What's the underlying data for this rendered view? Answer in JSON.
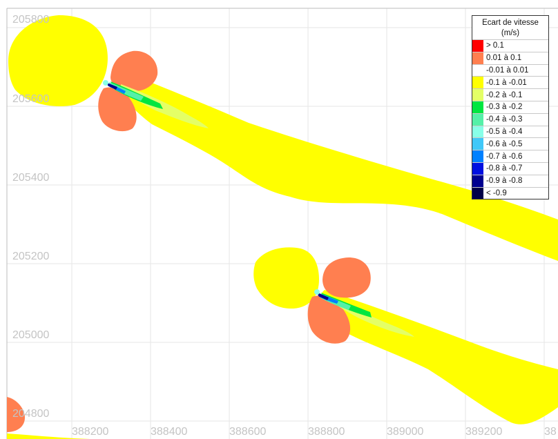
{
  "chart_data": {
    "type": "heatmap",
    "x_ticks": [
      "388200",
      "388400",
      "388600",
      "388800",
      "389000",
      "389200",
      "38"
    ],
    "y_ticks": [
      "205800",
      "205600",
      "205400",
      "205200",
      "205000",
      "204800"
    ],
    "grid": true,
    "legend": {
      "placement": "top-right",
      "title": "Ecart de vitesse",
      "unit": "(m/s)",
      "entries": [
        {
          "label": "> 0.1",
          "color": "#ff0000"
        },
        {
          "label": "0.01 à 0.1",
          "color": "#ff7f50"
        },
        {
          "label": "-0.01 à 0.01",
          "color": "#ffffff"
        },
        {
          "label": "-0.1 à -0.01",
          "color": "#ffff00"
        },
        {
          "label": "-0.2 à -0.1",
          "color": "#e4ff66"
        },
        {
          "label": "-0.3 à -0.2",
          "color": "#00e640"
        },
        {
          "label": "-0.4 à -0.3",
          "color": "#55f0a8"
        },
        {
          "label": "-0.5 à -0.4",
          "color": "#88ffe8"
        },
        {
          "label": "-0.6 à -0.5",
          "color": "#40c8f8"
        },
        {
          "label": "-0.7 à -0.6",
          "color": "#0080ff"
        },
        {
          "label": "-0.8 à -0.7",
          "color": "#0010e0"
        },
        {
          "label": "-0.9 à -0.8",
          "color": "#000090"
        },
        {
          "label": "< -0.9",
          "color": "#000048"
        }
      ]
    }
  }
}
